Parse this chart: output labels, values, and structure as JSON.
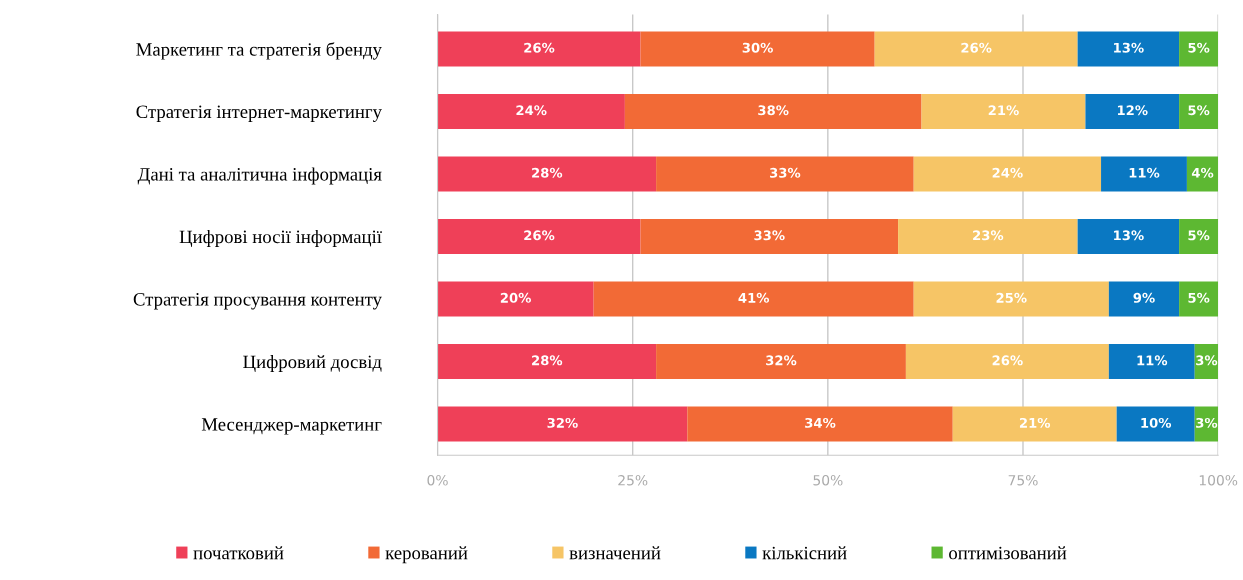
{
  "chart_data": {
    "type": "bar",
    "orientation": "horizontal",
    "stacked": true,
    "categories": [
      "Маркетинг та стратегія бренду",
      "Стратегія інтернет-маркетингу",
      "Дані та аналітична інформація",
      "Цифрові носії інформації",
      "Стратегія просування контенту",
      "Цифровий досвід",
      "Месенджер-маркетинг"
    ],
    "series": [
      {
        "name": "початковий",
        "color": "#ef4058",
        "values": [
          26,
          24,
          28,
          26,
          20,
          28,
          32
        ],
        "value_labels": [
          "26%",
          "24%",
          "28%",
          "26%",
          "20%",
          "28%",
          "32%"
        ]
      },
      {
        "name": "керований",
        "color": "#f26a36",
        "values": [
          30,
          38,
          33,
          33,
          41,
          32,
          34
        ],
        "value_labels": [
          "30%",
          "38%",
          "33%",
          "33%",
          "41%",
          "32%",
          "34%"
        ]
      },
      {
        "name": "визначений",
        "color": "#f6c566",
        "values": [
          26,
          21,
          24,
          23,
          25,
          26,
          21
        ],
        "value_labels": [
          "26%",
          "21%",
          "24%",
          "23%",
          "25%",
          "26%",
          "21%"
        ]
      },
      {
        "name": "кількісний",
        "color": "#0a78c2",
        "values": [
          13,
          12,
          11,
          13,
          9,
          11,
          10
        ],
        "value_labels": [
          "13%",
          "12%",
          "11%",
          "13%",
          "9%",
          "11%",
          "10%"
        ]
      },
      {
        "name": "оптимізований",
        "color": "#5db832",
        "values": [
          5,
          5,
          4,
          5,
          5,
          3,
          3
        ],
        "value_labels": [
          "5%",
          "5%",
          "4%",
          "5%",
          "5%",
          "3%",
          "3%"
        ]
      }
    ],
    "xlim": [
      0,
      100
    ],
    "xticks": [
      {
        "value": 0,
        "label": "0%"
      },
      {
        "value": 25,
        "label": "25%"
      },
      {
        "value": 50,
        "label": "50%"
      },
      {
        "value": 75,
        "label": "75%"
      },
      {
        "value": 100,
        "label": "100%"
      }
    ],
    "grid": "x",
    "legend": "bottom"
  }
}
